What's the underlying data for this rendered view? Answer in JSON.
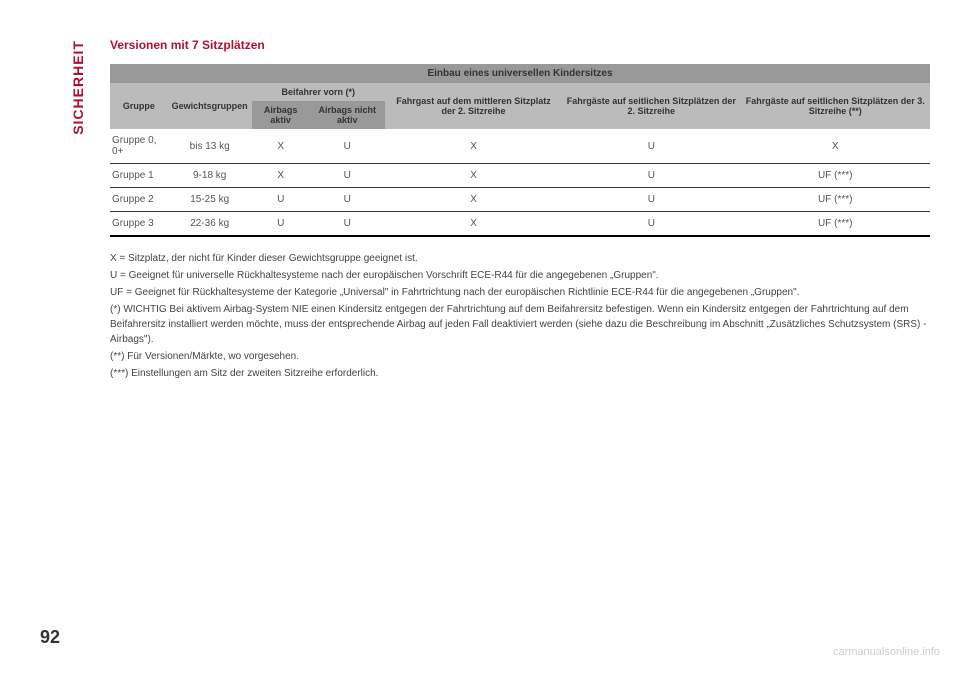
{
  "sidebar": {
    "label": "SICHERHEIT"
  },
  "section": {
    "title": "Versionen mit 7 Sitzplätzen"
  },
  "table": {
    "header": {
      "main_title": "Einbau eines universellen Kindersitzes",
      "gruppe": "Gruppe",
      "gewicht": "Gewichtsgruppen",
      "beifahrer": "Beifahrer vorn (*)",
      "airbags_aktiv": "Airbags aktiv",
      "airbags_nicht": "Airbags nicht aktiv",
      "fahrgast_mitte": "Fahrgast auf dem mittleren Sitzplatz der 2. Sitzreihe",
      "fahrgaeste_2": "Fahrgäste auf seitlichen Sitzplätzen der 2. Sitzreihe",
      "fahrgaeste_3": "Fahrgäste auf seitlichen Sitzplätzen der 3. Sitzreihe (**)"
    },
    "rows": [
      {
        "gruppe": "Gruppe 0, 0+",
        "gewicht": "bis 13 kg",
        "aktiv": "X",
        "nicht": "U",
        "mitte": "X",
        "seite2": "U",
        "seite3": "X"
      },
      {
        "gruppe": "Gruppe 1",
        "gewicht": "9-18 kg",
        "aktiv": "X",
        "nicht": "U",
        "mitte": "X",
        "seite2": "U",
        "seite3": "UF (***)"
      },
      {
        "gruppe": "Gruppe 2",
        "gewicht": "15-25 kg",
        "aktiv": "U",
        "nicht": "U",
        "mitte": "X",
        "seite2": "U",
        "seite3": "UF (***)"
      },
      {
        "gruppe": "Gruppe 3",
        "gewicht": "22-36 kg",
        "aktiv": "U",
        "nicht": "U",
        "mitte": "X",
        "seite2": "U",
        "seite3": "UF (***)"
      }
    ]
  },
  "notes": {
    "n1": "X = Sitzplatz, der nicht für Kinder dieser Gewichtsgruppe geeignet ist.",
    "n2": "U = Geeignet für universelle Rückhaltesysteme nach der europäischen Vorschrift ECE-R44 für die angegebenen „Gruppen\".",
    "n3": "UF = Geeignet für Rückhaltesysteme der Kategorie „Universal\" in Fahrtrichtung nach der europäischen Richtlinie ECE-R44 für die angegebenen „Gruppen\".",
    "n4": "(*) WICHTIG Bei aktivem Airbag-System NIE einen Kindersitz entgegen der Fahrtrichtung auf dem Beifahrersitz befestigen. Wenn ein Kindersitz entgegen der Fahrtrichtung auf dem Beifahrersitz installiert werden möchte, muss der entsprechende Airbag auf jeden Fall deaktiviert werden (siehe dazu die Beschreibung im Abschnitt „Zusätzliches Schutzsystem (SRS) - Airbags\").",
    "n5": "(**) Für Versionen/Märkte, wo vorgesehen.",
    "n6": "(***) Einstellungen am Sitz der zweiten Sitzreihe erforderlich."
  },
  "page": {
    "number": "92"
  },
  "watermark": {
    "text": "carmanualsonline.info"
  },
  "colors": {
    "accent": "#b01030",
    "header_bg_dark": "#999999",
    "header_bg_light": "#bbbbbb",
    "text": "#444444",
    "border": "#333333"
  }
}
